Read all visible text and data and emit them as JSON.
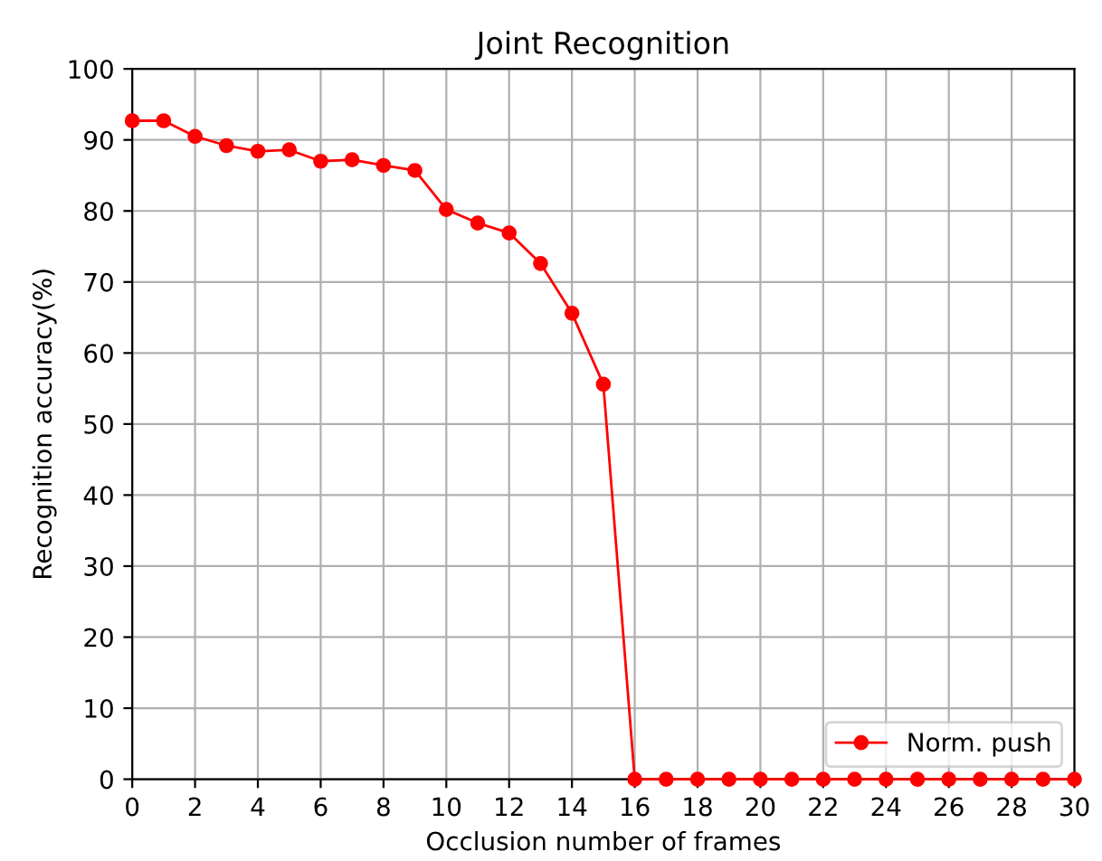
{
  "chart_data": {
    "type": "line",
    "title": "Joint Recognition",
    "xlabel": "Occlusion number of frames",
    "ylabel": "Recognition accuracy(%)",
    "x": [
      0,
      1,
      2,
      3,
      4,
      5,
      6,
      7,
      8,
      9,
      10,
      11,
      12,
      13,
      14,
      15,
      16,
      17,
      18,
      19,
      20,
      21,
      22,
      23,
      24,
      25,
      26,
      27,
      28,
      29,
      30
    ],
    "series": [
      {
        "name": "Norm. push",
        "color": "#ff0000",
        "values": [
          92.7,
          92.7,
          90.5,
          89.2,
          88.4,
          88.6,
          87.0,
          87.2,
          86.4,
          85.7,
          80.2,
          78.3,
          76.9,
          72.6,
          65.6,
          55.6,
          0,
          0,
          0,
          0,
          0,
          0,
          0,
          0,
          0,
          0,
          0,
          0,
          0,
          0,
          0
        ]
      }
    ],
    "xlim": [
      0,
      30
    ],
    "xticks": [
      0,
      2,
      4,
      6,
      8,
      10,
      12,
      14,
      16,
      18,
      20,
      22,
      24,
      26,
      28,
      30
    ],
    "ylim": [
      0,
      100
    ],
    "yticks": [
      0,
      10,
      20,
      30,
      40,
      50,
      60,
      70,
      80,
      90,
      100
    ],
    "grid": true,
    "legend": "lower right",
    "marker": "circle",
    "line_style": "solid"
  }
}
